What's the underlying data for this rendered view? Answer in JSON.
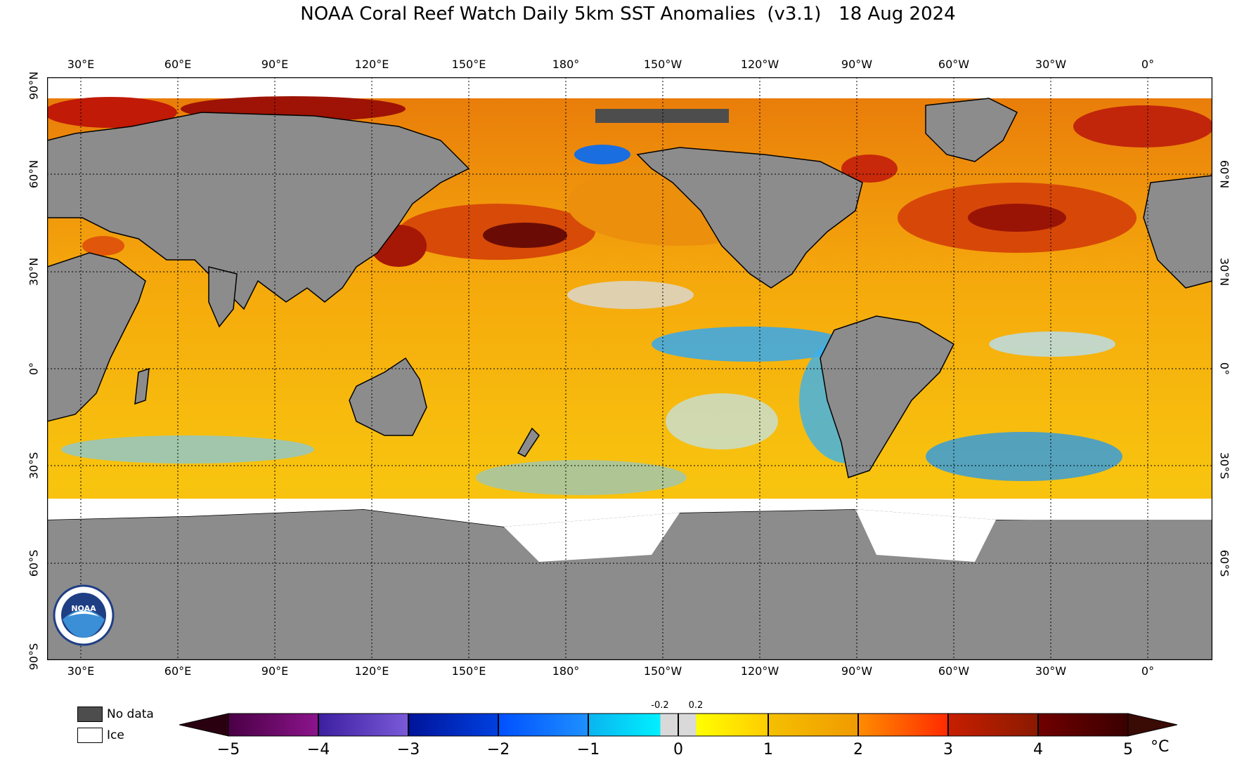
{
  "title": "NOAA Coral Reef Watch Daily 5km SST Anomalies  (v3.1)   18 Aug 2024",
  "lon_labels": [
    "30°E",
    "60°E",
    "90°E",
    "120°E",
    "150°E",
    "180°",
    "150°W",
    "120°W",
    "90°W",
    "60°W",
    "30°W",
    "0°"
  ],
  "lat_labels_left": [
    "90°N",
    "60°N",
    "30°N",
    "0°",
    "30°S",
    "60°S",
    "90°S"
  ],
  "lat_labels_right": [
    "60°N",
    "30°N",
    "0°",
    "30°S",
    "60°S"
  ],
  "legend": {
    "no_data": "No data",
    "ice": "Ice"
  },
  "colorbar": {
    "ticks": [
      "−5",
      "−4",
      "−3",
      "−2",
      "−1",
      "0",
      "1",
      "2",
      "3",
      "4",
      "5"
    ],
    "small_ticks": [
      "-0.2",
      "0.2"
    ],
    "unit": "°C"
  },
  "colors": {
    "land": "#8c8c8c",
    "ice": "#ffffff",
    "no_data": "#4d4d4d",
    "ocean_warm": "#f5b40a"
  }
}
